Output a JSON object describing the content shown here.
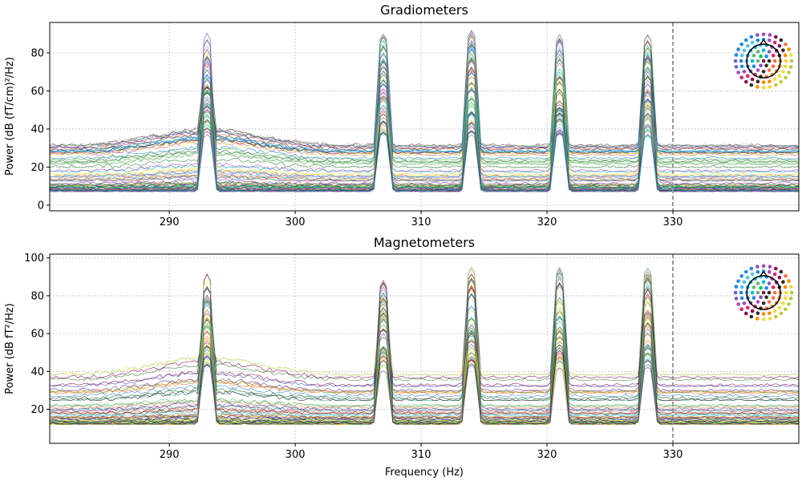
{
  "chart_data": [
    {
      "type": "line",
      "title": "Gradiometers",
      "xlabel": "",
      "ylabel": "Power (dB (fT/cm)²/Hz)",
      "xlim": [
        280.5,
        340
      ],
      "ylim": [
        -3,
        96
      ],
      "xticks": [
        290,
        300,
        310,
        320,
        330
      ],
      "yticks": [
        0,
        20,
        40,
        60,
        80
      ],
      "grid": true,
      "legend": "sensor-layout-inset top-right",
      "vline_x": 330,
      "peaks_hz": [
        293,
        307,
        314,
        321,
        328
      ],
      "series_summary": {
        "channel_count": 70,
        "baseline_range_db": [
          7,
          33
        ],
        "peak_max_db": [
          91,
          90,
          92,
          90,
          90
        ]
      }
    },
    {
      "type": "line",
      "title": "Magnetometers",
      "xlabel": "Frequency (Hz)",
      "ylabel": "Power (dB fT²/Hz)",
      "xlim": [
        280.5,
        340
      ],
      "ylim": [
        2,
        102
      ],
      "xticks": [
        290,
        300,
        310,
        320,
        330
      ],
      "yticks": [
        20,
        40,
        60,
        80,
        100
      ],
      "grid": true,
      "legend": "sensor-layout-inset top-right",
      "vline_x": 330,
      "peaks_hz": [
        293,
        307,
        314,
        321,
        328
      ],
      "series_summary": {
        "channel_count": 60,
        "baseline_range_db": [
          12,
          40
        ],
        "peak_max_db": [
          96,
          92,
          96,
          97,
          95
        ]
      }
    }
  ],
  "colors": {
    "vline": "#999999",
    "grid": "#b0b0b0",
    "palette": [
      "#1b5e20",
      "#2e7d32",
      "#43a047",
      "#66bb6a",
      "#a5d6a7",
      "#00c853",
      "#26a69a",
      "#00acc1",
      "#4fc3f7",
      "#1e88e5",
      "#3949ab",
      "#5e35b1",
      "#8e24aa",
      "#ab47bc",
      "#ce93d8",
      "#880e4f",
      "#c2185b",
      "#e53935",
      "#ff7043",
      "#fb8c00",
      "#fdd835",
      "#eeff41",
      "#212121",
      "#3e2723",
      "#4e342e"
    ]
  }
}
